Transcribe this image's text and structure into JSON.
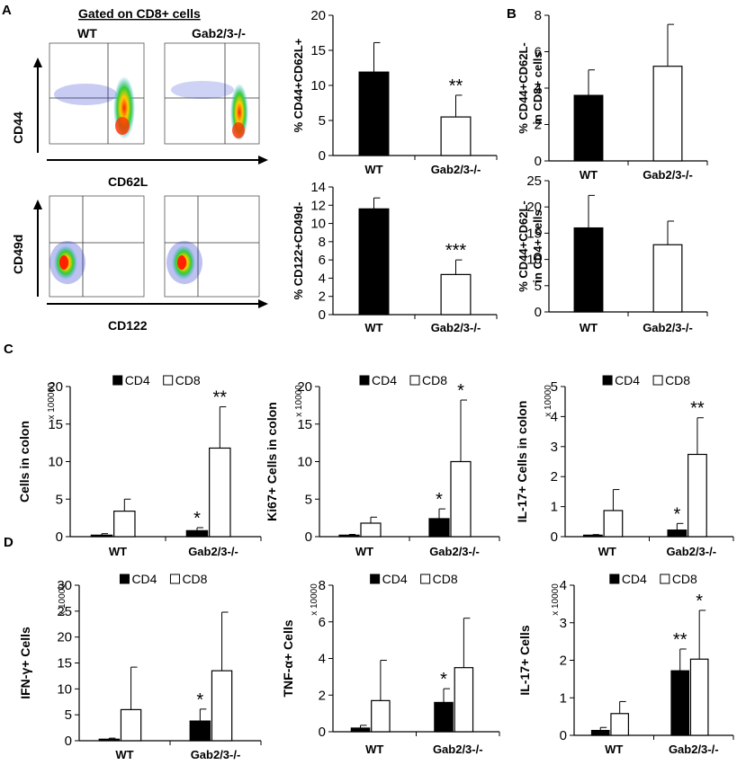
{
  "panel_labels": {
    "a": "A",
    "b": "B",
    "c": "C",
    "d": "D"
  },
  "flow": {
    "gated_title": "Gated on CD8+ cells",
    "wt_label": "WT",
    "ko_label": "Gab2/3-/-",
    "cd44_axis": "CD44",
    "cd62l_axis": "CD62L",
    "cd49d_axis": "CD49d",
    "cd122_axis": "CD122"
  },
  "colors": {
    "wt_bar": "#000000",
    "ko_bar": "#ffffff",
    "cd4_bar": "#000000",
    "cd8_bar": "#ffffff",
    "dot_blue": "#2233cc",
    "dot_hot": "#ff3300"
  },
  "chart_data": [
    {
      "id": "a1",
      "type": "bar",
      "ylabel": "% CD44+CD62L+",
      "categories": [
        "WT",
        "Gab2/3-/-"
      ],
      "values": [
        11.9,
        5.5
      ],
      "errors": [
        4.2,
        3.1
      ],
      "ylim": [
        0,
        20
      ],
      "ticks": [
        0,
        5,
        10,
        15,
        20
      ],
      "significance": [
        "",
        "**"
      ],
      "tick_labels": [
        "0",
        "5",
        "10",
        "15",
        "20"
      ]
    },
    {
      "id": "a2",
      "type": "bar",
      "ylabel": "% CD122+CD49d-",
      "categories": [
        "WT",
        "Gab2/3-/-"
      ],
      "values": [
        11.6,
        4.4
      ],
      "errors": [
        1.2,
        1.6
      ],
      "ylim": [
        0,
        14
      ],
      "ticks": [
        0,
        2,
        4,
        6,
        8,
        10,
        12,
        14
      ],
      "significance": [
        "",
        "***"
      ],
      "tick_labels": [
        "0",
        "2",
        "4",
        "6",
        "8",
        "10",
        "12",
        "14"
      ]
    },
    {
      "id": "b1",
      "type": "bar",
      "ylabel": "% CD44+CD62L- in CD8+ cells",
      "ylabel_lines": [
        "% CD44+CD62L-",
        "in CD8+ cells"
      ],
      "categories": [
        "WT",
        "Gab2/3-/-"
      ],
      "values": [
        3.6,
        5.2
      ],
      "errors": [
        1.4,
        2.3
      ],
      "ylim": [
        0,
        8
      ],
      "ticks": [
        0,
        2,
        4,
        6,
        8
      ],
      "significance": [
        "",
        ""
      ],
      "tick_labels": [
        "0",
        "2",
        "4",
        "6",
        "8"
      ]
    },
    {
      "id": "b2",
      "type": "bar",
      "ylabel": "% CD44+CD62L- in CD4+ cells",
      "ylabel_lines": [
        "% CD44+CD62L-",
        "in CD4+ cells"
      ],
      "categories": [
        "WT",
        "Gab2/3-/-"
      ],
      "values": [
        16.0,
        12.8
      ],
      "errors": [
        6.2,
        4.5
      ],
      "ylim": [
        0,
        25
      ],
      "ticks": [
        0,
        5,
        10,
        15,
        20,
        25
      ],
      "significance": [
        "",
        ""
      ],
      "tick_labels": [
        "0",
        "5",
        "10",
        "15",
        "20",
        "25"
      ]
    },
    {
      "id": "c1",
      "type": "bar",
      "ylabel": "Cells in colon",
      "multiplier": "x 100000",
      "categories": [
        "WT",
        "Gab2/3-/-"
      ],
      "legend": [
        "CD4",
        "CD8"
      ],
      "series": [
        {
          "name": "CD4",
          "values": [
            0.2,
            0.8
          ],
          "errors": [
            0.2,
            0.4
          ],
          "significance": [
            "",
            "*"
          ]
        },
        {
          "name": "CD8",
          "values": [
            3.4,
            11.8
          ],
          "errors": [
            1.6,
            5.5
          ],
          "significance": [
            "",
            "**"
          ]
        }
      ],
      "ylim": [
        0,
        20
      ],
      "ticks": [
        0,
        5,
        10,
        15,
        20
      ],
      "tick_labels": [
        "0",
        "5",
        "10",
        "15",
        "20"
      ]
    },
    {
      "id": "c2",
      "type": "bar",
      "ylabel": "Ki67+ Cells in colon",
      "multiplier": "x 10000",
      "categories": [
        "WT",
        "Gab2/3-/-"
      ],
      "legend": [
        "CD4",
        "CD8"
      ],
      "series": [
        {
          "name": "CD4",
          "values": [
            0.2,
            2.4
          ],
          "errors": [
            0.1,
            1.3
          ],
          "significance": [
            "",
            "*"
          ]
        },
        {
          "name": "CD8",
          "values": [
            1.8,
            10.0
          ],
          "errors": [
            0.8,
            8.2
          ],
          "significance": [
            "",
            "*"
          ]
        }
      ],
      "ylim": [
        0,
        20
      ],
      "ticks": [
        0,
        5,
        10,
        15,
        20
      ],
      "tick_labels": [
        "0",
        "5",
        "10",
        "15",
        "20"
      ]
    },
    {
      "id": "c3",
      "type": "bar",
      "ylabel": "IL-17+ Cells in colon",
      "multiplier": "x 10000",
      "categories": [
        "WT",
        "Gab2/3-/-"
      ],
      "legend": [
        "CD4",
        "CD8"
      ],
      "series": [
        {
          "name": "CD4",
          "values": [
            0.05,
            0.22
          ],
          "errors": [
            0.02,
            0.22
          ],
          "significance": [
            "",
            "*"
          ]
        },
        {
          "name": "CD8",
          "values": [
            0.87,
            2.74
          ],
          "errors": [
            0.7,
            1.22
          ],
          "significance": [
            "",
            "**"
          ]
        }
      ],
      "ylim": [
        0,
        5
      ],
      "ticks": [
        0,
        1,
        2,
        3,
        4,
        5
      ],
      "tick_labels": [
        "0",
        "1",
        "2",
        "3",
        "4",
        "5"
      ]
    },
    {
      "id": "d1",
      "type": "bar",
      "ylabel": "IFN-γ+ Cells",
      "multiplier": "x 10000",
      "categories": [
        "WT",
        "Gab2/3-/-"
      ],
      "legend": [
        "CD4",
        "CD8"
      ],
      "series": [
        {
          "name": "CD4",
          "values": [
            0.3,
            3.8
          ],
          "errors": [
            0.2,
            2.3
          ],
          "significance": [
            "",
            "*"
          ]
        },
        {
          "name": "CD8",
          "values": [
            6.0,
            13.5
          ],
          "errors": [
            8.2,
            11.3
          ],
          "significance": [
            "",
            ""
          ]
        }
      ],
      "ylim": [
        0,
        30
      ],
      "ticks": [
        0,
        5,
        10,
        15,
        20,
        25,
        30
      ],
      "tick_labels": [
        "0",
        "5",
        "10",
        "15",
        "20",
        "25",
        "30"
      ]
    },
    {
      "id": "d2",
      "type": "bar",
      "ylabel": "TNF-α+ Cells",
      "multiplier": "x 10000",
      "categories": [
        "WT",
        "Gab2/3-/-"
      ],
      "legend": [
        "CD4",
        "CD8"
      ],
      "series": [
        {
          "name": "CD4",
          "values": [
            0.2,
            1.6
          ],
          "errors": [
            0.15,
            0.75
          ],
          "significance": [
            "",
            "*"
          ]
        },
        {
          "name": "CD8",
          "values": [
            1.7,
            3.5
          ],
          "errors": [
            2.2,
            2.7
          ],
          "significance": [
            "",
            ""
          ]
        }
      ],
      "ylim": [
        0,
        8
      ],
      "ticks": [
        0,
        2,
        4,
        6,
        8
      ],
      "tick_labels": [
        "0",
        "2",
        "4",
        "6",
        "8"
      ]
    },
    {
      "id": "d3",
      "type": "bar",
      "ylabel": "IL-17+ Cells",
      "multiplier": "x 10000",
      "categories": [
        "WT",
        "Gab2/3-/-"
      ],
      "legend": [
        "CD4",
        "CD8"
      ],
      "series": [
        {
          "name": "CD4",
          "values": [
            0.13,
            1.72
          ],
          "errors": [
            0.08,
            0.58
          ],
          "significance": [
            "",
            "**"
          ]
        },
        {
          "name": "CD8",
          "values": [
            0.58,
            2.03
          ],
          "errors": [
            0.32,
            1.3
          ],
          "significance": [
            "",
            "*"
          ]
        }
      ],
      "ylim": [
        0,
        4
      ],
      "ticks": [
        0,
        1,
        2,
        3,
        4
      ],
      "tick_labels": [
        "0",
        "1",
        "2",
        "3",
        "4"
      ]
    }
  ]
}
